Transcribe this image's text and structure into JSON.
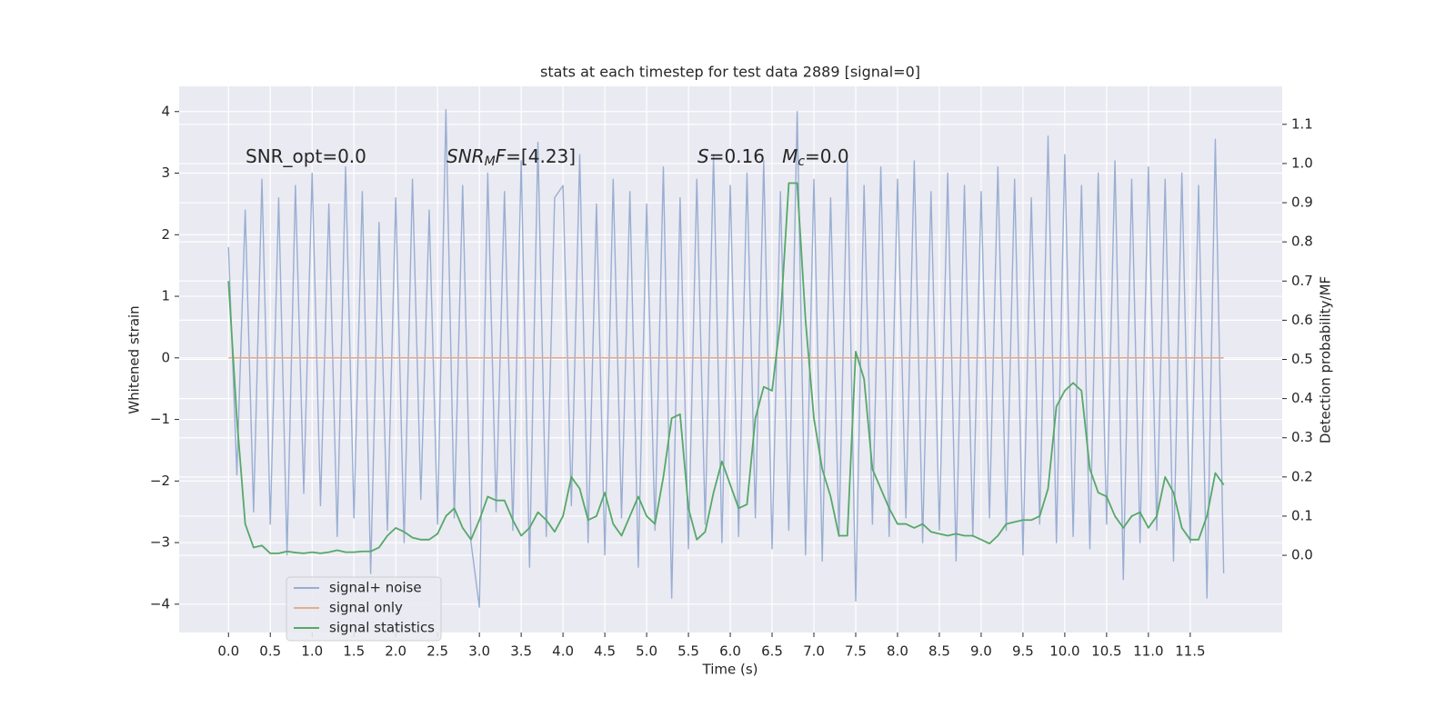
{
  "chart_data": {
    "type": "line",
    "title": "stats at each timestep for test data 2889 [signal=0]",
    "xlabel": "Time (s)",
    "ylabel": "Whitened strain",
    "y2label": "Detection probability/MF",
    "annotations": [
      [
        {
          "text": "SNR_opt=0.0"
        }
      ],
      [
        {
          "text": "SNR",
          "style": "italic"
        },
        {
          "text": "M",
          "style": "italic-sub"
        },
        {
          "text": "F",
          "style": "italic"
        },
        {
          "text": "=[4.23]"
        }
      ],
      [
        {
          "text": "S",
          "style": "italic"
        },
        {
          "text": "=0.16   "
        },
        {
          "text": "M",
          "style": "italic"
        },
        {
          "text": "c",
          "style": "italic-sub"
        },
        {
          "text": "=0.0"
        }
      ]
    ],
    "legend": "lower left",
    "grid": true,
    "background": "#eaeaf2",
    "xlim": [
      -0.59,
      12.6
    ],
    "ylim": [
      -4.46,
      4.41
    ],
    "y2lim": [
      -0.197,
      1.197
    ],
    "xticks": [
      {
        "value": 0,
        "label": "0.0"
      },
      0.5,
      {
        "value": 1,
        "label": "1.0"
      },
      1.5,
      {
        "value": 2,
        "label": "2.0"
      },
      2.5,
      {
        "value": 3,
        "label": "3.0"
      },
      3.5,
      {
        "value": 4,
        "label": "4.0"
      },
      4.5,
      {
        "value": 5,
        "label": "5.0"
      },
      5.5,
      {
        "value": 6,
        "label": "6.0"
      },
      6.5,
      {
        "value": 7,
        "label": "7.0"
      },
      7.5,
      {
        "value": 8,
        "label": "8.0"
      },
      8.5,
      {
        "value": 9,
        "label": "9.0"
      },
      9.5,
      {
        "value": 10,
        "label": "10.0"
      },
      10.5,
      {
        "value": 11,
        "label": "11.0"
      },
      11.5
    ],
    "yticks": [
      {
        "value": -4,
        "label": "−4"
      },
      {
        "value": -3,
        "label": "−3"
      },
      {
        "value": -2,
        "label": "−2"
      },
      {
        "value": -1,
        "label": "−1"
      },
      0,
      1,
      2,
      3,
      4
    ],
    "y2ticks": [
      {
        "value": 0,
        "label": "0.0"
      },
      0.1,
      0.2,
      0.3,
      0.4,
      0.5,
      0.6,
      0.7,
      0.8,
      0.9,
      {
        "value": 1,
        "label": "1.0"
      },
      1.1
    ],
    "x": [
      0,
      0.1,
      0.2,
      0.3,
      0.4,
      0.5,
      0.6,
      0.7,
      0.8,
      0.9,
      1,
      1.1,
      1.2,
      1.3,
      1.4,
      1.5,
      1.6,
      1.7,
      1.8,
      1.9,
      2,
      2.1,
      2.2,
      2.3,
      2.4,
      2.5,
      2.6,
      2.7,
      2.8,
      2.9,
      3,
      3.1,
      3.2,
      3.3,
      3.4,
      3.5,
      3.6,
      3.7,
      3.8,
      3.9,
      4,
      4.1,
      4.2,
      4.3,
      4.4,
      4.5,
      4.6,
      4.7,
      4.8,
      4.9,
      5,
      5.1,
      5.2,
      5.3,
      5.4,
      5.5,
      5.6,
      5.7,
      5.8,
      5.9,
      6,
      6.1,
      6.2,
      6.3,
      6.4,
      6.5,
      6.6,
      6.7,
      6.8,
      6.9,
      7,
      7.1,
      7.2,
      7.3,
      7.4,
      7.5,
      7.6,
      7.7,
      7.8,
      7.9,
      8,
      8.1,
      8.2,
      8.3,
      8.4,
      8.5,
      8.6,
      8.7,
      8.8,
      8.9,
      9,
      9.1,
      9.2,
      9.3,
      9.4,
      9.5,
      9.6,
      9.7,
      9.8,
      9.9,
      10,
      10.1,
      10.2,
      10.3,
      10.4,
      10.5,
      10.6,
      10.7,
      10.8,
      10.9,
      11,
      11.1,
      11.2,
      11.3,
      11.4,
      11.5,
      11.6,
      11.7,
      11.8,
      11.9
    ],
    "series": [
      {
        "name": "signal+ noise",
        "color": "#9aaed2",
        "width": 1.4,
        "values": [
          1.8,
          -1.9,
          2.4,
          -2.5,
          2.9,
          -2.7,
          2.6,
          -3.2,
          2.8,
          -2.2,
          3.0,
          -2.4,
          2.5,
          -2.9,
          3.1,
          -2.6,
          2.7,
          -3.5,
          2.2,
          -2.8,
          2.6,
          -3.0,
          2.9,
          -2.3,
          2.4,
          -2.7,
          4.03,
          -2.6,
          2.8,
          -3.0,
          -4.05,
          3.0,
          -2.5,
          2.7,
          -2.8,
          3.2,
          -3.4,
          3.5,
          -2.9,
          2.6,
          2.8,
          -2.4,
          3.3,
          -3.0,
          2.5,
          -3.2,
          2.9,
          -2.6,
          2.7,
          -3.4,
          2.5,
          -2.8,
          3.1,
          -3.9,
          2.6,
          -3.1,
          2.9,
          -2.7,
          3.3,
          -3.0,
          2.8,
          -2.9,
          3.0,
          -2.6,
          3.2,
          -3.1,
          2.7,
          -2.8,
          4.0,
          -3.2,
          2.9,
          -3.3,
          2.6,
          -2.9,
          3.2,
          -3.95,
          2.8,
          -2.7,
          3.1,
          -2.9,
          2.9,
          -2.6,
          3.2,
          -3.0,
          2.7,
          -2.8,
          3.0,
          -3.3,
          2.8,
          -2.9,
          2.7,
          -2.6,
          3.1,
          -2.8,
          2.9,
          -3.2,
          2.6,
          -2.7,
          3.6,
          -3.0,
          3.3,
          -2.9,
          2.8,
          -3.1,
          3.0,
          -2.7,
          3.2,
          -3.6,
          2.9,
          -3.0,
          3.1,
          -2.8,
          2.9,
          -3.3,
          3.0,
          -3.0,
          2.8,
          -3.9,
          3.55,
          -3.5
        ]
      },
      {
        "name": "signal only",
        "color": "#e4ab92",
        "width": 1.6,
        "values": [
          0,
          0,
          0,
          0,
          0,
          0,
          0,
          0,
          0,
          0,
          0,
          0,
          0,
          0,
          0,
          0,
          0,
          0,
          0,
          0,
          0,
          0,
          0,
          0,
          0,
          0,
          0,
          0,
          0,
          0,
          0,
          0,
          0,
          0,
          0,
          0,
          0,
          0,
          0,
          0,
          0,
          0,
          0,
          0,
          0,
          0,
          0,
          0,
          0,
          0,
          0,
          0,
          0,
          0,
          0,
          0,
          0,
          0,
          0,
          0,
          0,
          0,
          0,
          0,
          0,
          0,
          0,
          0,
          0,
          0,
          0,
          0,
          0,
          0,
          0,
          0,
          0,
          0,
          0,
          0,
          0,
          0,
          0,
          0,
          0,
          0,
          0,
          0,
          0,
          0,
          0,
          0,
          0,
          0,
          0,
          0,
          0,
          0,
          0,
          0,
          0,
          0,
          0,
          0,
          0,
          0,
          0,
          0,
          0,
          0,
          0,
          0,
          0,
          0,
          0,
          0,
          0,
          0,
          0,
          0
        ]
      },
      {
        "name": "signal statistics",
        "color": "#55a868",
        "width": 1.8,
        "axis": "y2",
        "values": [
          0.7,
          0.35,
          0.08,
          0.02,
          0.025,
          0.005,
          0.005,
          0.01,
          0.007,
          0.005,
          0.008,
          0.005,
          0.008,
          0.013,
          0.008,
          0.008,
          0.01,
          0.01,
          0.02,
          0.05,
          0.07,
          0.06,
          0.045,
          0.04,
          0.04,
          0.055,
          0.1,
          0.12,
          0.07,
          0.04,
          0.09,
          0.15,
          0.14,
          0.14,
          0.09,
          0.05,
          0.07,
          0.11,
          0.09,
          0.06,
          0.1,
          0.2,
          0.17,
          0.09,
          0.1,
          0.16,
          0.08,
          0.05,
          0.1,
          0.15,
          0.1,
          0.08,
          0.2,
          0.35,
          0.36,
          0.12,
          0.04,
          0.06,
          0.16,
          0.24,
          0.18,
          0.12,
          0.13,
          0.35,
          0.43,
          0.42,
          0.6,
          0.95,
          0.95,
          0.6,
          0.35,
          0.22,
          0.15,
          0.05,
          0.05,
          0.52,
          0.45,
          0.22,
          0.17,
          0.12,
          0.08,
          0.08,
          0.07,
          0.08,
          0.06,
          0.055,
          0.05,
          0.055,
          0.05,
          0.05,
          0.04,
          0.03,
          0.05,
          0.08,
          0.085,
          0.09,
          0.09,
          0.1,
          0.17,
          0.38,
          0.42,
          0.44,
          0.42,
          0.22,
          0.16,
          0.15,
          0.1,
          0.07,
          0.1,
          0.11,
          0.07,
          0.1,
          0.2,
          0.16,
          0.07,
          0.04,
          0.04,
          0.1,
          0.21,
          0.18
        ]
      }
    ]
  }
}
